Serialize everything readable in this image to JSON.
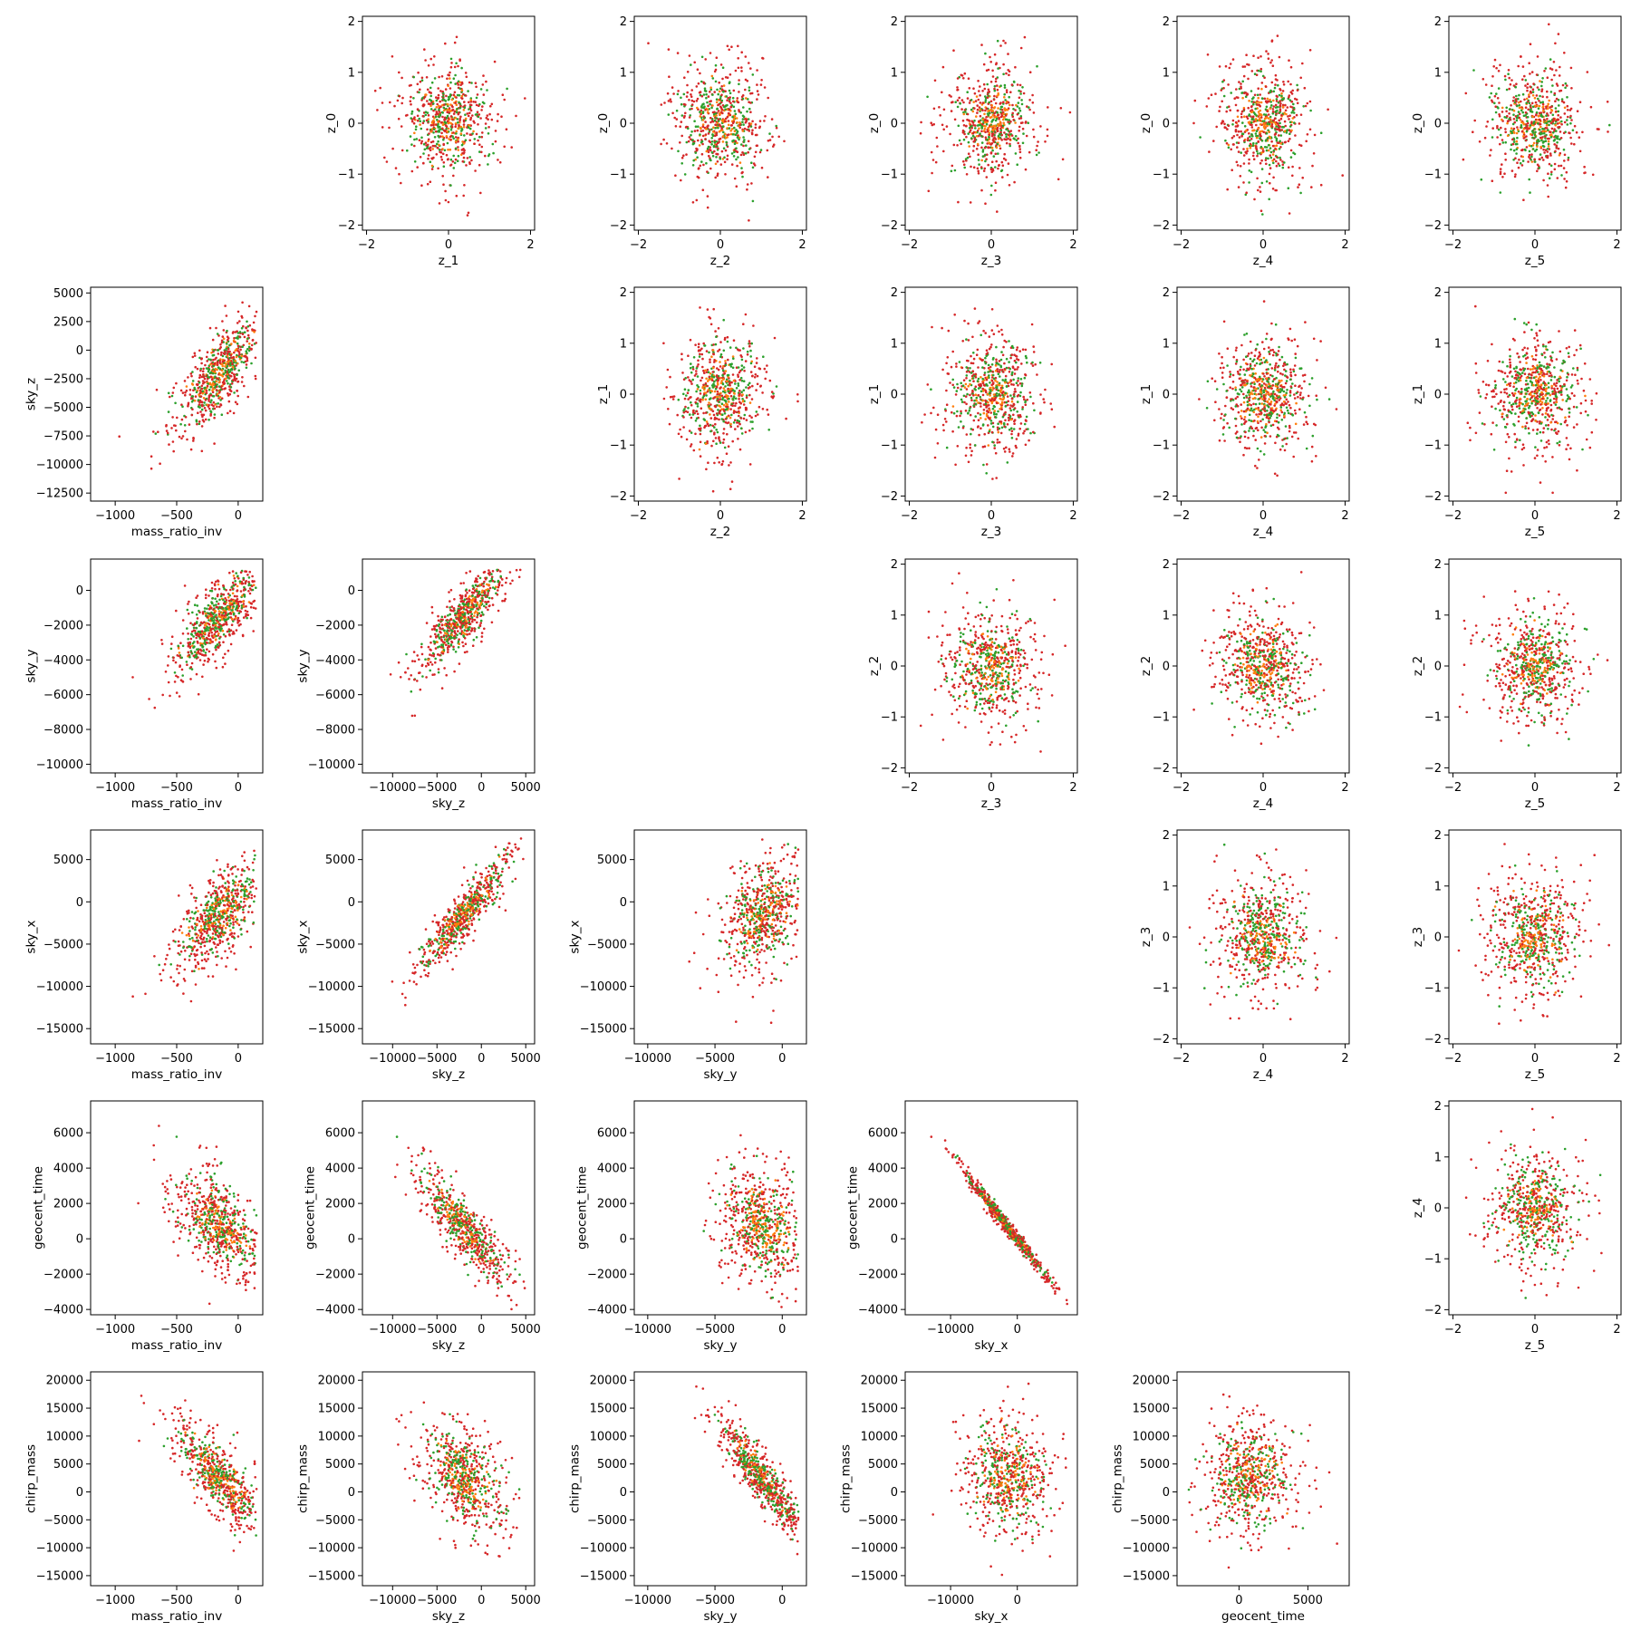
{
  "chart_data": {
    "type": "scatter",
    "layout": "triangular pair-plot: upper triangle = latent z_i vs z_j, lower triangle = physical parameter pairs",
    "grid": false,
    "legend": "none",
    "series_colors": {
      "primary": "#d62728",
      "secondary": "#2ca02c",
      "tertiary": "#ff7f0e"
    },
    "point_distributions": {
      "latent_pairs": {
        "x_center": 0,
        "y_center": 0,
        "std": 0.6,
        "range": [
          -2,
          2
        ]
      },
      "physical": {
        "mass_ratio_inv": {
          "center": -150,
          "min": -1150,
          "max": 150
        },
        "sky_z": {
          "center": -2000,
          "min": -12500,
          "max": 5000
        },
        "sky_y": {
          "center": -1500,
          "min": -10000,
          "max": 1200
        },
        "sky_x": {
          "center": -1500,
          "min": -15500,
          "max": 7500
        },
        "geocent_time": {
          "center": 700,
          "min": -4000,
          "max": 7200
        },
        "chirp_mass": {
          "center": 2500,
          "min": -15000,
          "max": 20000
        }
      },
      "correlations": {
        "sky_z|mass_ratio_inv": 0.75,
        "sky_y|mass_ratio_inv": 0.8,
        "sky_y|sky_z": 0.85,
        "sky_x|mass_ratio_inv": 0.7,
        "sky_x|sky_z": 0.9,
        "sky_x|sky_y": 0.3,
        "geocent_time|mass_ratio_inv": -0.6,
        "geocent_time|sky_z": -0.85,
        "geocent_time|sky_y": -0.2,
        "geocent_time|sky_x": -0.99,
        "chirp_mass|mass_ratio_inv": -0.75,
        "chirp_mass|sky_z": -0.45,
        "chirp_mass|sky_y": -0.9,
        "chirp_mass|sky_x": -0.1,
        "chirp_mass|geocent_time": 0.1
      }
    },
    "panels": [
      {
        "row": 0,
        "col": 1,
        "xlabel": "z_1",
        "ylabel": "z_0",
        "xlim": [
          -2.1,
          2.1
        ],
        "ylim": [
          -2.1,
          2.1
        ],
        "xticks": [
          "−2",
          "0",
          "2"
        ],
        "yticks": [
          "−2",
          "−1",
          "0",
          "1",
          "2"
        ]
      },
      {
        "row": 0,
        "col": 2,
        "xlabel": "z_2",
        "ylabel": "z_0",
        "xlim": [
          -2.1,
          2.1
        ],
        "ylim": [
          -2.1,
          2.1
        ],
        "xticks": [
          "−2",
          "0",
          "2"
        ],
        "yticks": [
          "−2",
          "−1",
          "0",
          "1",
          "2"
        ]
      },
      {
        "row": 0,
        "col": 3,
        "xlabel": "z_3",
        "ylabel": "z_0",
        "xlim": [
          -2.1,
          2.1
        ],
        "ylim": [
          -2.1,
          2.1
        ],
        "xticks": [
          "−2",
          "0",
          "2"
        ],
        "yticks": [
          "−2",
          "−1",
          "0",
          "1",
          "2"
        ]
      },
      {
        "row": 0,
        "col": 4,
        "xlabel": "z_4",
        "ylabel": "z_0",
        "xlim": [
          -2.1,
          2.1
        ],
        "ylim": [
          -2.1,
          2.1
        ],
        "xticks": [
          "−2",
          "0",
          "2"
        ],
        "yticks": [
          "−2",
          "−1",
          "0",
          "1",
          "2"
        ]
      },
      {
        "row": 0,
        "col": 5,
        "xlabel": "z_5",
        "ylabel": "z_0",
        "xlim": [
          -2.1,
          2.1
        ],
        "ylim": [
          -2.1,
          2.1
        ],
        "xticks": [
          "−2",
          "0",
          "2"
        ],
        "yticks": [
          "−2",
          "−1",
          "0",
          "1",
          "2"
        ]
      },
      {
        "row": 1,
        "col": 0,
        "xlabel": "mass_ratio_inv",
        "ylabel": "sky_z",
        "xlim": [
          -1200,
          200
        ],
        "ylim": [
          -13200,
          5500
        ],
        "xticks": [
          "−1000",
          "−500",
          "0"
        ],
        "yticks": [
          "−12500",
          "−10000",
          "−7500",
          "−5000",
          "−2500",
          "0",
          "2500",
          "5000"
        ]
      },
      {
        "row": 1,
        "col": 2,
        "xlabel": "z_2",
        "ylabel": "z_1",
        "xlim": [
          -2.1,
          2.1
        ],
        "ylim": [
          -2.1,
          2.1
        ],
        "xticks": [
          "−2",
          "0",
          "2"
        ],
        "yticks": [
          "−2",
          "−1",
          "0",
          "1",
          "2"
        ]
      },
      {
        "row": 1,
        "col": 3,
        "xlabel": "z_3",
        "ylabel": "z_1",
        "xlim": [
          -2.1,
          2.1
        ],
        "ylim": [
          -2.1,
          2.1
        ],
        "xticks": [
          "−2",
          "0",
          "2"
        ],
        "yticks": [
          "−2",
          "−1",
          "0",
          "1",
          "2"
        ]
      },
      {
        "row": 1,
        "col": 4,
        "xlabel": "z_4",
        "ylabel": "z_1",
        "xlim": [
          -2.1,
          2.1
        ],
        "ylim": [
          -2.1,
          2.1
        ],
        "xticks": [
          "−2",
          "0",
          "2"
        ],
        "yticks": [
          "−2",
          "−1",
          "0",
          "1",
          "2"
        ]
      },
      {
        "row": 1,
        "col": 5,
        "xlabel": "z_5",
        "ylabel": "z_1",
        "xlim": [
          -2.1,
          2.1
        ],
        "ylim": [
          -2.1,
          2.1
        ],
        "xticks": [
          "−2",
          "0",
          "2"
        ],
        "yticks": [
          "−2",
          "−1",
          "0",
          "1",
          "2"
        ]
      },
      {
        "row": 2,
        "col": 0,
        "xlabel": "mass_ratio_inv",
        "ylabel": "sky_y",
        "xlim": [
          -1200,
          200
        ],
        "ylim": [
          -10500,
          1800
        ],
        "xticks": [
          "−1000",
          "−500",
          "0"
        ],
        "yticks": [
          "−10000",
          "−8000",
          "−6000",
          "−4000",
          "−2000",
          "0"
        ]
      },
      {
        "row": 2,
        "col": 1,
        "xlabel": "sky_z",
        "ylabel": "sky_y",
        "xlim": [
          -13400,
          6000
        ],
        "ylim": [
          -10500,
          1800
        ],
        "xticks": [
          "−10000",
          "−5000",
          "0",
          "5000"
        ],
        "yticks": [
          "−10000",
          "−8000",
          "−6000",
          "−4000",
          "−2000",
          "0"
        ]
      },
      {
        "row": 2,
        "col": 3,
        "xlabel": "z_3",
        "ylabel": "z_2",
        "xlim": [
          -2.1,
          2.1
        ],
        "ylim": [
          -2.1,
          2.1
        ],
        "xticks": [
          "−2",
          "0",
          "2"
        ],
        "yticks": [
          "−2",
          "−1",
          "0",
          "1",
          "2"
        ]
      },
      {
        "row": 2,
        "col": 4,
        "xlabel": "z_4",
        "ylabel": "z_2",
        "xlim": [
          -2.1,
          2.1
        ],
        "ylim": [
          -2.1,
          2.1
        ],
        "xticks": [
          "−2",
          "0",
          "2"
        ],
        "yticks": [
          "−2",
          "−1",
          "0",
          "1",
          "2"
        ]
      },
      {
        "row": 2,
        "col": 5,
        "xlabel": "z_5",
        "ylabel": "z_2",
        "xlim": [
          -2.1,
          2.1
        ],
        "ylim": [
          -2.1,
          2.1
        ],
        "xticks": [
          "−2",
          "0",
          "2"
        ],
        "yticks": [
          "−2",
          "−1",
          "0",
          "1",
          "2"
        ]
      },
      {
        "row": 3,
        "col": 0,
        "xlabel": "mass_ratio_inv",
        "ylabel": "sky_x",
        "xlim": [
          -1200,
          200
        ],
        "ylim": [
          -16800,
          8500
        ],
        "xticks": [
          "−1000",
          "−500",
          "0"
        ],
        "yticks": [
          "−15000",
          "−10000",
          "−5000",
          "0",
          "5000"
        ]
      },
      {
        "row": 3,
        "col": 1,
        "xlabel": "sky_z",
        "ylabel": "sky_x",
        "xlim": [
          -13400,
          6000
        ],
        "ylim": [
          -16800,
          8500
        ],
        "xticks": [
          "−10000",
          "−5000",
          "0",
          "5000"
        ],
        "yticks": [
          "−15000",
          "−10000",
          "−5000",
          "0",
          "5000"
        ]
      },
      {
        "row": 3,
        "col": 2,
        "xlabel": "sky_y",
        "ylabel": "sky_x",
        "xlim": [
          -11000,
          1800
        ],
        "ylim": [
          -16800,
          8500
        ],
        "xticks": [
          "−10000",
          "−5000",
          "0"
        ],
        "yticks": [
          "−15000",
          "−10000",
          "−5000",
          "0",
          "5000"
        ]
      },
      {
        "row": 3,
        "col": 4,
        "xlabel": "z_4",
        "ylabel": "z_3",
        "xlim": [
          -2.1,
          2.1
        ],
        "ylim": [
          -2.1,
          2.1
        ],
        "xticks": [
          "−2",
          "0",
          "2"
        ],
        "yticks": [
          "−2",
          "−1",
          "0",
          "1",
          "2"
        ]
      },
      {
        "row": 3,
        "col": 5,
        "xlabel": "z_5",
        "ylabel": "z_3",
        "xlim": [
          -2.1,
          2.1
        ],
        "ylim": [
          -2.1,
          2.1
        ],
        "xticks": [
          "−2",
          "0",
          "2"
        ],
        "yticks": [
          "−2",
          "−1",
          "0",
          "1",
          "2"
        ]
      },
      {
        "row": 4,
        "col": 0,
        "xlabel": "mass_ratio_inv",
        "ylabel": "geocent_time",
        "xlim": [
          -1200,
          200
        ],
        "ylim": [
          -4300,
          7800
        ],
        "xticks": [
          "−1000",
          "−500",
          "0"
        ],
        "yticks": [
          "−4000",
          "−2000",
          "0",
          "2000",
          "4000",
          "6000"
        ]
      },
      {
        "row": 4,
        "col": 1,
        "xlabel": "sky_z",
        "ylabel": "geocent_time",
        "xlim": [
          -13400,
          6000
        ],
        "ylim": [
          -4300,
          7800
        ],
        "xticks": [
          "−10000",
          "−5000",
          "0",
          "5000"
        ],
        "yticks": [
          "−4000",
          "−2000",
          "0",
          "2000",
          "4000",
          "6000"
        ]
      },
      {
        "row": 4,
        "col": 2,
        "xlabel": "sky_y",
        "ylabel": "geocent_time",
        "xlim": [
          -11000,
          1800
        ],
        "ylim": [
          -4300,
          7800
        ],
        "xticks": [
          "−10000",
          "−5000",
          "0"
        ],
        "yticks": [
          "−4000",
          "−2000",
          "0",
          "2000",
          "4000",
          "6000"
        ]
      },
      {
        "row": 4,
        "col": 3,
        "xlabel": "sky_x",
        "ylabel": "geocent_time",
        "xlim": [
          -16800,
          9000
        ],
        "ylim": [
          -4300,
          7800
        ],
        "xticks": [
          "−10000",
          "0"
        ],
        "yticks": [
          "−4000",
          "−2000",
          "0",
          "2000",
          "4000",
          "6000"
        ]
      },
      {
        "row": 4,
        "col": 5,
        "xlabel": "z_5",
        "ylabel": "z_4",
        "xlim": [
          -2.1,
          2.1
        ],
        "ylim": [
          -2.1,
          2.1
        ],
        "xticks": [
          "−2",
          "0",
          "2"
        ],
        "yticks": [
          "−2",
          "−1",
          "0",
          "1",
          "2"
        ]
      },
      {
        "row": 5,
        "col": 0,
        "xlabel": "mass_ratio_inv",
        "ylabel": "chirp_mass",
        "xlim": [
          -1200,
          200
        ],
        "ylim": [
          -16800,
          21500
        ],
        "xticks": [
          "−1000",
          "−500",
          "0"
        ],
        "yticks": [
          "−15000",
          "−10000",
          "−5000",
          "0",
          "5000",
          "10000",
          "15000",
          "20000"
        ]
      },
      {
        "row": 5,
        "col": 1,
        "xlabel": "sky_z",
        "ylabel": "chirp_mass",
        "xlim": [
          -13400,
          6000
        ],
        "ylim": [
          -16800,
          21500
        ],
        "xticks": [
          "−10000",
          "−5000",
          "0",
          "5000"
        ],
        "yticks": [
          "−15000",
          "−10000",
          "−5000",
          "0",
          "5000",
          "10000",
          "15000",
          "20000"
        ]
      },
      {
        "row": 5,
        "col": 2,
        "xlabel": "sky_y",
        "ylabel": "chirp_mass",
        "xlim": [
          -11000,
          1800
        ],
        "ylim": [
          -16800,
          21500
        ],
        "xticks": [
          "−10000",
          "−5000",
          "0"
        ],
        "yticks": [
          "−15000",
          "−10000",
          "−5000",
          "0",
          "5000",
          "10000",
          "15000",
          "20000"
        ]
      },
      {
        "row": 5,
        "col": 3,
        "xlabel": "sky_x",
        "ylabel": "chirp_mass",
        "xlim": [
          -16800,
          9000
        ],
        "ylim": [
          -16800,
          21500
        ],
        "xticks": [
          "−10000",
          "0"
        ],
        "yticks": [
          "−15000",
          "−10000",
          "−5000",
          "0",
          "5000",
          "10000",
          "15000",
          "20000"
        ]
      },
      {
        "row": 5,
        "col": 4,
        "xlabel": "geocent_time",
        "ylabel": "chirp_mass",
        "xlim": [
          -4500,
          8000
        ],
        "ylim": [
          -16800,
          21500
        ],
        "xticks": [
          "0",
          "5000"
        ],
        "yticks": [
          "−15000",
          "−10000",
          "−5000",
          "0",
          "5000",
          "10000",
          "15000",
          "20000"
        ]
      }
    ]
  }
}
